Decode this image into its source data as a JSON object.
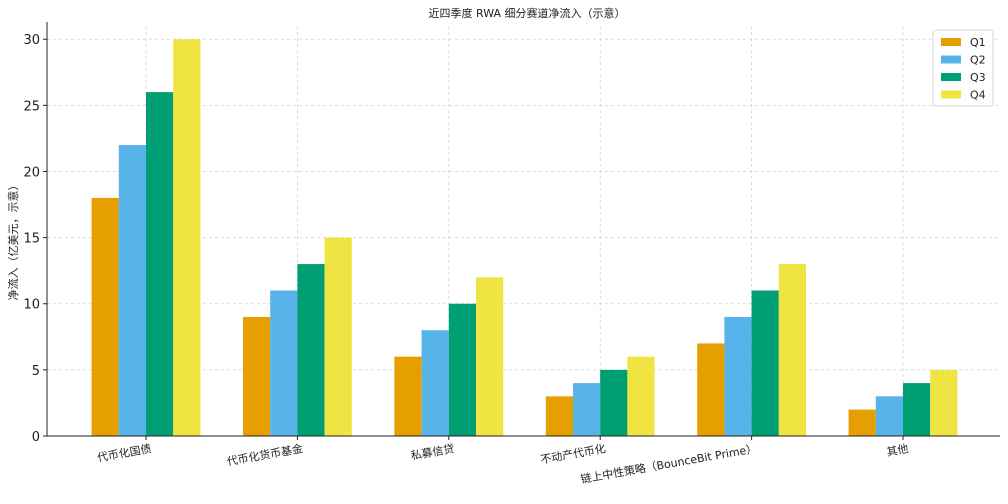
{
  "chart_data": {
    "type": "bar",
    "title": "近四季度 RWA 细分赛道净流入（示意）",
    "xlabel": "",
    "ylabel": "净流入（亿美元，示意）",
    "categories": [
      "代币化国债",
      "代币化货币基金",
      "私募信贷",
      "不动产代币化",
      "链上中性策略（BounceBit Prime）",
      "其他"
    ],
    "series": [
      {
        "name": "Q1",
        "color": "#E69F00",
        "values": [
          18,
          9,
          6,
          3,
          7,
          2
        ]
      },
      {
        "name": "Q2",
        "color": "#56B4E9",
        "values": [
          22,
          11,
          8,
          4,
          9,
          3
        ]
      },
      {
        "name": "Q3",
        "color": "#009E73",
        "values": [
          26,
          13,
          10,
          5,
          11,
          4
        ]
      },
      {
        "name": "Q4",
        "color": "#F0E442",
        "values": [
          30,
          15,
          12,
          6,
          13,
          5
        ]
      }
    ],
    "ylim": [
      0,
      31
    ],
    "yticks": [
      0,
      5,
      10,
      15,
      20,
      25,
      30
    ],
    "grid": true,
    "legend_position": "top-right"
  }
}
